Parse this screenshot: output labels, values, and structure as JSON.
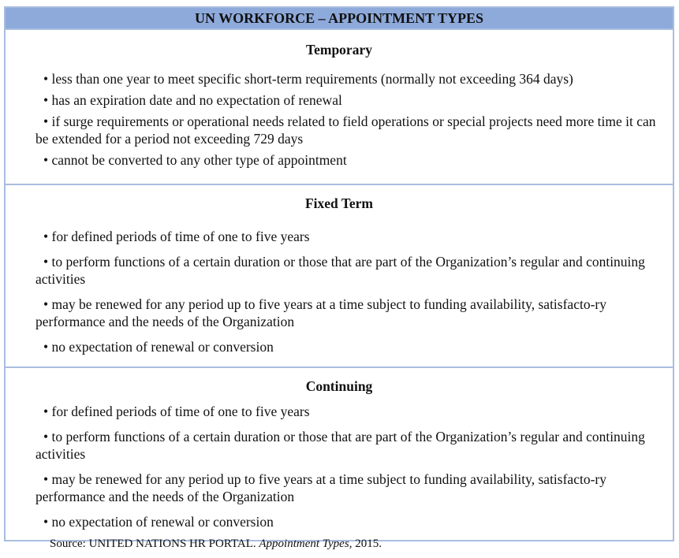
{
  "header": {
    "title": "UN WORKFORCE – APPOINTMENT TYPES"
  },
  "sections": [
    {
      "title": "Temporary",
      "items": [
        "• less than one year to meet specific short-term requirements (normally not exceeding 364 days)",
        "• has an expiration date and no expectation of renewal",
        "• if surge requirements or operational needs related to field operations or special projects need more time it can be extended for a period not exceeding 729 days",
        "• cannot be converted to any other type of appointment"
      ]
    },
    {
      "title": "Fixed Term",
      "items": [
        "• for defined periods of time of one to five years",
        "• to perform functions of a certain duration or those that are part of the Organization’s regular and continuing activities",
        "• may be renewed for any period up to five years at a time subject to funding availability, satisfacto-ry performance and the needs of the Organization",
        "• no expectation of renewal or conversion"
      ]
    },
    {
      "title": "Continuing",
      "items": [
        "• for defined periods of time of one to five years",
        "• to perform functions of a certain duration or those that are part of the Organization’s regular and continuing activities",
        "• may be renewed for any period up to five years at a time subject to funding availability, satisfacto-ry performance and the needs of the Organization",
        "• no expectation of renewal or conversion"
      ]
    }
  ],
  "source": {
    "prefix": "Source: UNITED NATIONS HR PORTAL. ",
    "title": "Appointment Types",
    "suffix": ", 2015."
  }
}
